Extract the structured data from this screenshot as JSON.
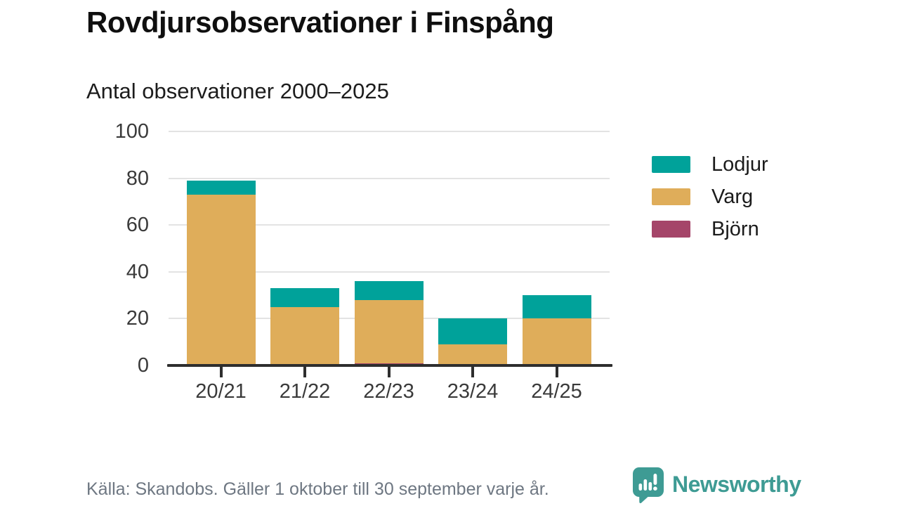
{
  "header": {
    "title": "Rovdjursobservationer i Finspång",
    "subtitle": "Antal observationer 2000–2025"
  },
  "chart_data": {
    "type": "bar",
    "stacked": true,
    "title": "Rovdjursobservationer i Finspång",
    "subtitle": "Antal observationer 2000–2025",
    "categories": [
      "20/21",
      "21/22",
      "22/23",
      "23/24",
      "24/25"
    ],
    "series": [
      {
        "name": "Lodjur",
        "color": "#00a29a",
        "values": [
          6,
          8,
          8,
          11,
          10
        ]
      },
      {
        "name": "Varg",
        "color": "#dfad5a",
        "values": [
          73,
          25,
          27,
          9,
          20
        ]
      },
      {
        "name": "Björn",
        "color": "#a54569",
        "values": [
          0,
          0,
          1,
          0,
          0
        ]
      }
    ],
    "totals": [
      79,
      33,
      36,
      20,
      30
    ],
    "ylim": [
      0,
      100
    ],
    "yticks": [
      0,
      20,
      40,
      60,
      80,
      100
    ],
    "xlabel": "",
    "ylabel": "",
    "grid": true,
    "legend_position": "right",
    "stack_order_bottom_to_top": [
      "Björn",
      "Varg",
      "Lodjur"
    ]
  },
  "footer": {
    "source": "Källa: Skandobs. Gäller 1 oktober till 30 september varje år.",
    "brand": "Newsworthy",
    "brand_color": "#3e9b94"
  },
  "icons": {
    "logo": "newsworthy-speech-bubble-bar-chart-exclamation-icon"
  }
}
